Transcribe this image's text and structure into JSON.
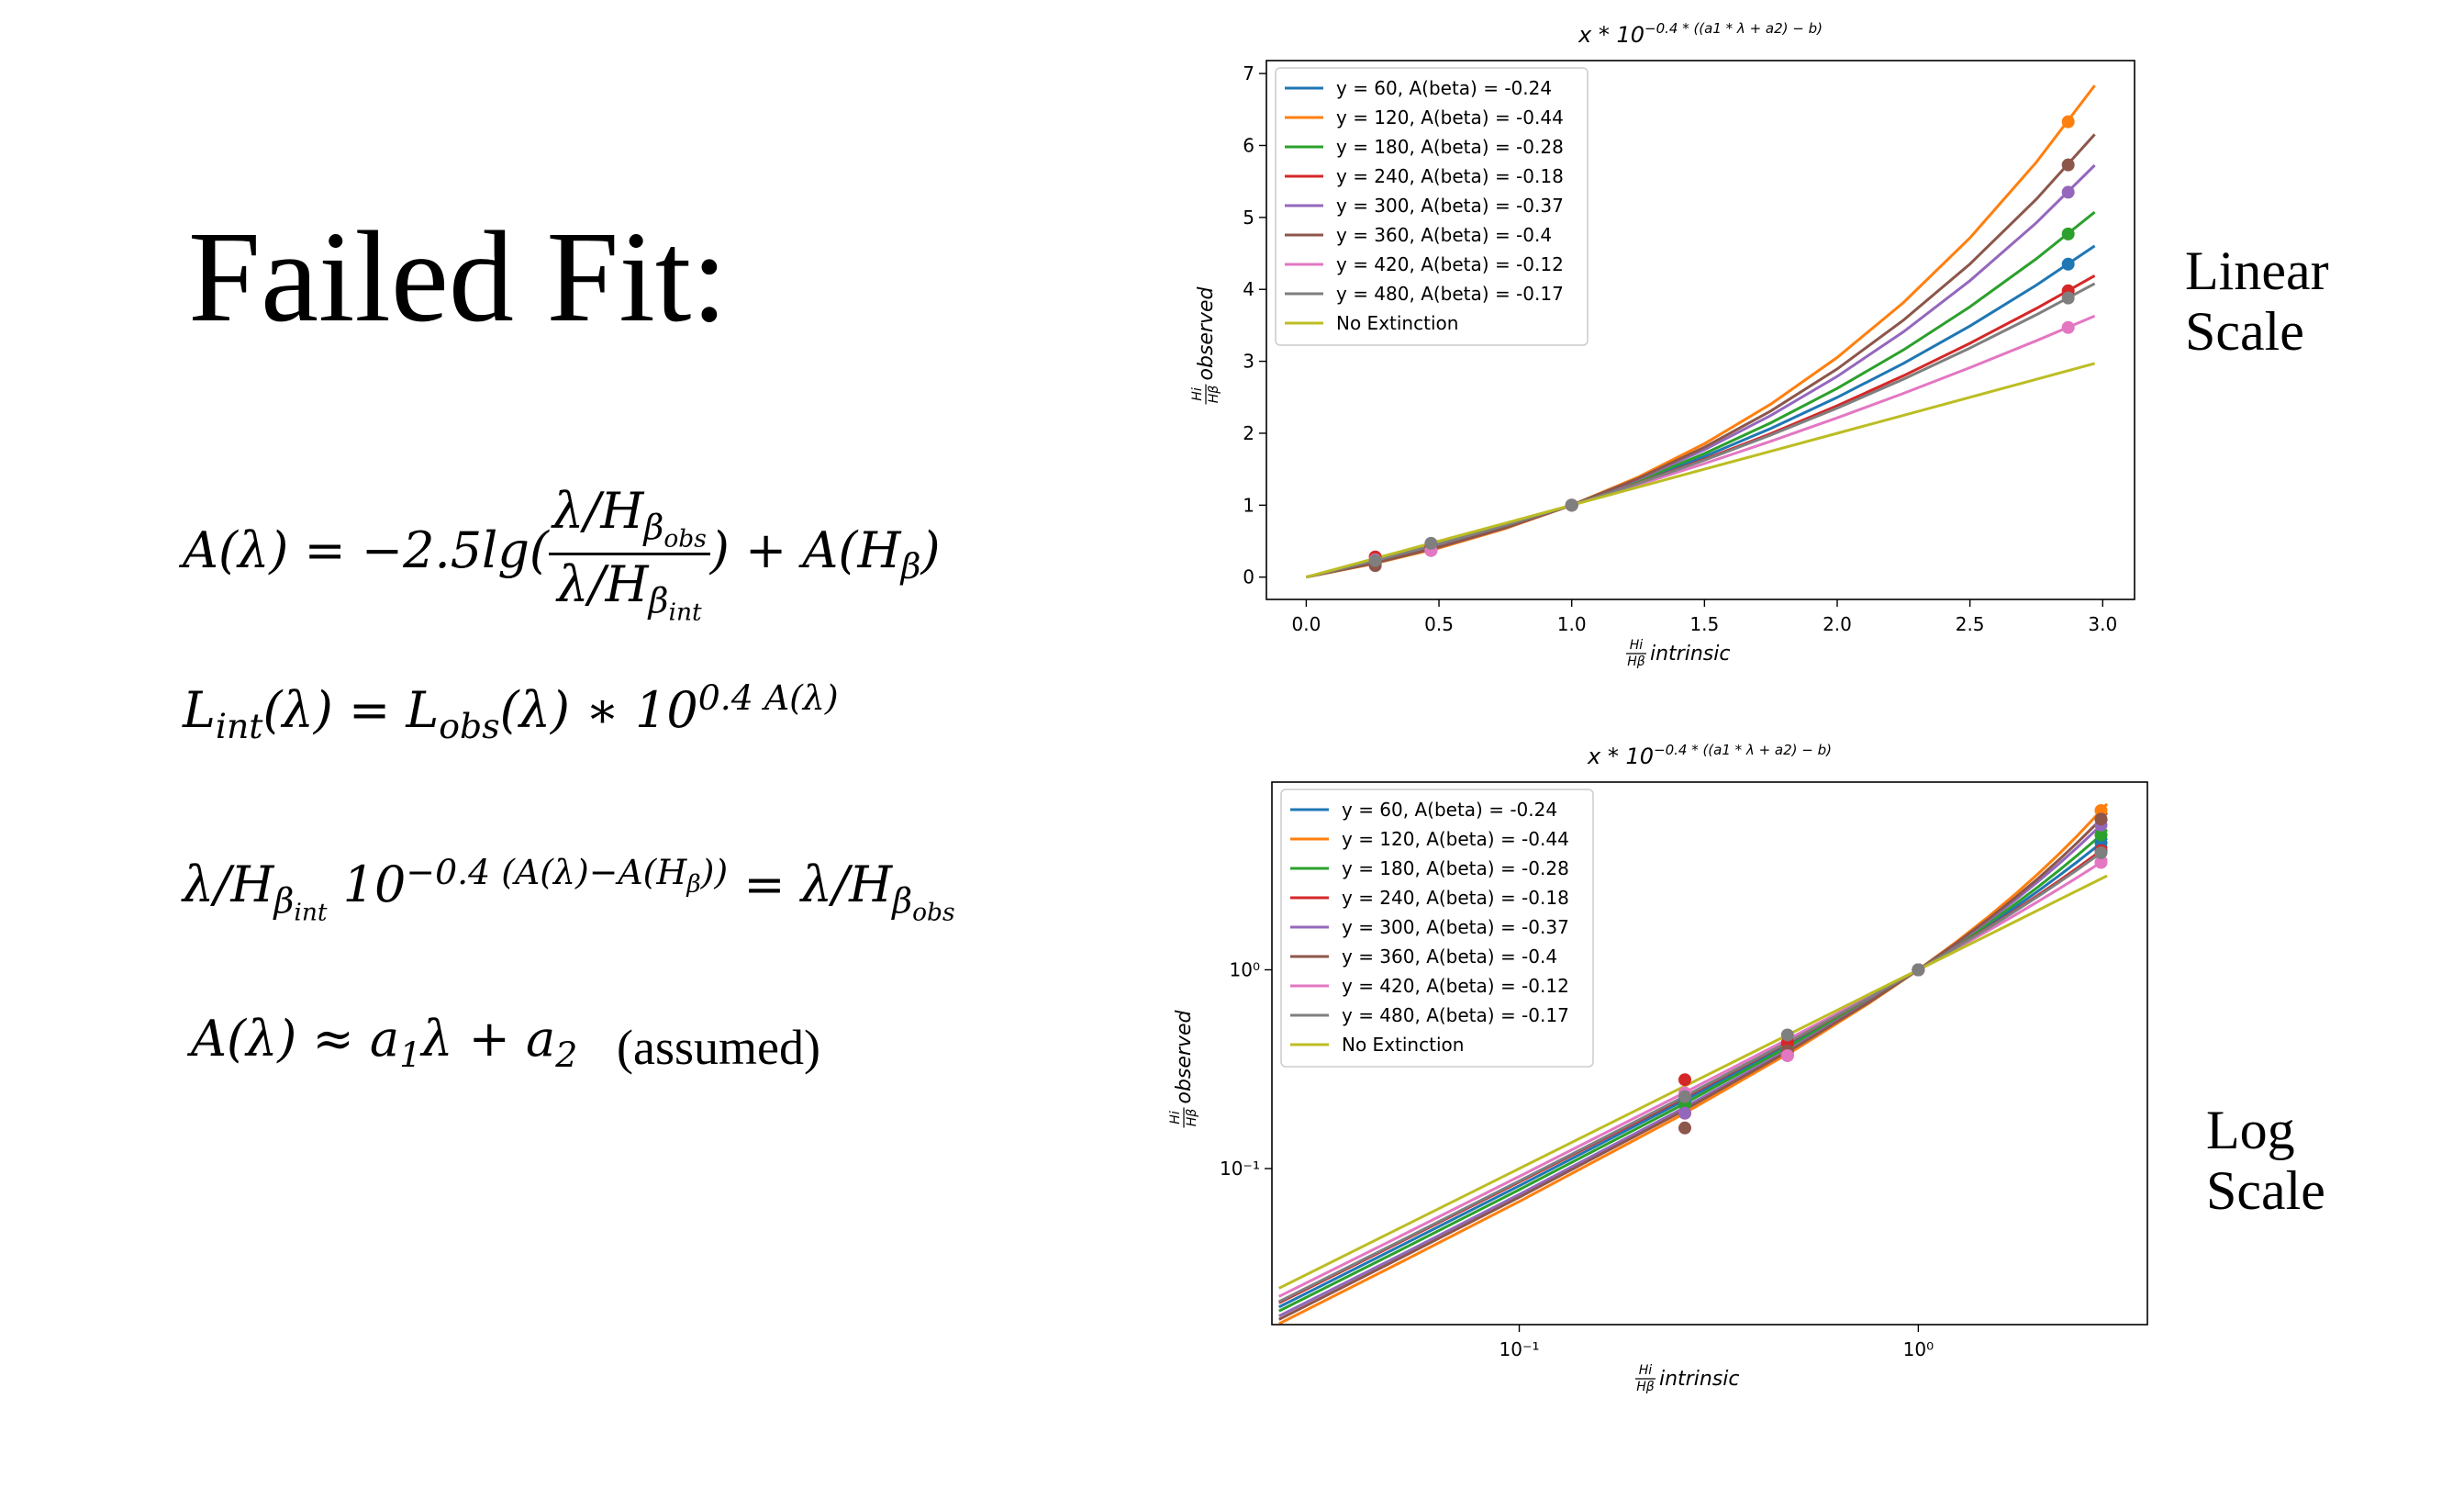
{
  "slide": {
    "title": "Failed Fit:",
    "equations": [
      [
        "A(λ) = −2.5lg(",
        "λ/H",
        "β",
        "obs",
        "λ/H",
        "β",
        "int",
        ") + A(H",
        "β",
        ")"
      ],
      [
        "L",
        "int",
        "(λ) = L",
        "obs",
        "(λ) ∗ 10",
        "0.4 A(λ)"
      ],
      [
        "λ/H",
        "β",
        "int",
        " 10",
        "−0.4 (A(λ)−A(H",
        "β",
        "))",
        " = λ/H",
        "β",
        "obs"
      ],
      [
        "A(λ) ≈ a",
        "1",
        "λ + a",
        "2"
      ]
    ],
    "note": "(assumed)",
    "labels": [
      "Linear Scale",
      "Log Scale"
    ]
  },
  "chart_data": [
    {
      "type": "line",
      "title": "x * 10",
      "title_exponent": "−0.4 * ((a1 * λ + a2) − b)",
      "xlabel": {
        "numerator": "Hi",
        "denominator": "Hβ",
        "text": "intrinsic"
      },
      "ylabel": {
        "numerator": "Hi",
        "denominator": "Hβ",
        "text": "observed"
      },
      "xlim": [
        -0.15,
        3.12
      ],
      "ylim": [
        -0.31,
        7.18
      ],
      "xticks": [
        {
          "value": 0,
          "label": "0.0"
        },
        0.5,
        {
          "value": 1,
          "label": "1.0"
        },
        1.5,
        {
          "value": 2,
          "label": "2.0"
        },
        2.5,
        {
          "value": 3,
          "label": "3.0"
        }
      ],
      "yticks": [
        0,
        1,
        2,
        3,
        4,
        5,
        6,
        7
      ],
      "grid": false,
      "legend": "upper left",
      "x": [
        0,
        0.25,
        0.5,
        0.75,
        1,
        1.25,
        1.5,
        1.75,
        2,
        2.25,
        2.5,
        2.75,
        2.97
      ],
      "marker_x": [
        0.26,
        0.47,
        1,
        2.87
      ],
      "series": [
        {
          "name": "y = 60, A(beta) = -0.24",
          "color": "#1f77b4",
          "values": [
            0,
            0.212,
            0.447,
            0.709,
            1,
            1.321,
            1.676,
            2.067,
            2.498,
            2.972,
            3.49,
            4.059,
            4.604
          ],
          "marker_values": [
            0.22,
            0.42,
            1,
            4.35
          ]
        },
        {
          "name": "y = 120, A(beta) = -0.44",
          "color": "#ff7f0e",
          "values": [
            0,
            0.182,
            0.405,
            0.675,
            1,
            1.389,
            1.854,
            2.405,
            3.054,
            3.818,
            4.715,
            5.767,
            6.834
          ],
          "marker_values": [
            0.19,
            0.38,
            1,
            6.33
          ]
        },
        {
          "name": "y = 180, A(beta) = -0.28",
          "color": "#2ca02c",
          "values": [
            0,
            0.204,
            0.437,
            0.7,
            1,
            1.338,
            1.718,
            2.145,
            2.624,
            3.159,
            3.758,
            4.425,
            5.073
          ],
          "marker_values": [
            0.21,
            0.41,
            1,
            4.77
          ]
        },
        {
          "name": "y = 240, A(beta) = -0.18",
          "color": "#d62728",
          "values": [
            0,
            0.219,
            0.458,
            0.718,
            1,
            1.306,
            1.637,
            1.995,
            2.382,
            2.799,
            3.25,
            3.735,
            4.191
          ],
          "marker_values": [
            0.28,
            0.43,
            1,
            3.98
          ]
        },
        {
          "name": "y = 300, A(beta) = -0.37",
          "color": "#9467bd",
          "values": [
            0,
            0.195,
            0.423,
            0.69,
            1,
            1.359,
            1.771,
            2.247,
            2.79,
            3.411,
            4.12,
            4.925,
            5.726
          ],
          "marker_values": [
            0.19,
            0.37,
            1,
            5.35
          ]
        },
        {
          "name": "y = 360, A(beta) = -0.4",
          "color": "#8c564b",
          "values": [
            0,
            0.189,
            0.416,
            0.684,
            1,
            1.371,
            1.805,
            2.31,
            2.894,
            3.573,
            4.353,
            5.253,
            6.154
          ],
          "marker_values": [
            0.16,
            0.39,
            1,
            5.73
          ]
        },
        {
          "name": "y = 420, A(beta) = -0.12",
          "color": "#e377c2",
          "values": [
            0,
            0.232,
            0.476,
            0.731,
            1,
            1.282,
            1.578,
            1.889,
            2.214,
            2.554,
            2.912,
            3.286,
            3.629
          ],
          "marker_values": [
            0.24,
            0.37,
            1,
            3.47
          ]
        },
        {
          "name": "y = 480, A(beta) = -0.17",
          "color": "#7f7f7f",
          "values": [
            0,
            0.222,
            0.461,
            0.72,
            1,
            1.301,
            1.626,
            1.975,
            2.349,
            2.752,
            3.184,
            3.647,
            4.081
          ],
          "marker_values": [
            0.23,
            0.47,
            1,
            3.88
          ]
        },
        {
          "name": "No Extinction",
          "color": "#bcbd22",
          "values": [
            0,
            0.25,
            0.5,
            0.75,
            1,
            1.25,
            1.5,
            1.75,
            2,
            2.25,
            2.5,
            2.75,
            2.97
          ]
        }
      ]
    },
    {
      "type": "line",
      "title": "x * 10",
      "title_exponent": "−0.4 * ((a1 * λ + a2) − b)",
      "xlabel": {
        "numerator": "Hi",
        "denominator": "Hβ",
        "text": "intrinsic"
      },
      "ylabel": {
        "numerator": "Hi",
        "denominator": "Hβ",
        "text": "observed"
      },
      "xscale": "log",
      "yscale": "log",
      "xlim": [
        0.024,
        3.75
      ],
      "ylim": [
        0.0164,
        8.8
      ],
      "xticks": [
        {
          "value": 0.1,
          "label": "10⁻¹"
        },
        {
          "value": 1,
          "label": "10⁰"
        }
      ],
      "yticks": [
        {
          "value": 0.1,
          "label": "10⁻¹"
        },
        {
          "value": 1,
          "label": "10⁰"
        }
      ],
      "grid": false,
      "legend": "upper left",
      "x": [
        0.025,
        0.05,
        0.1,
        0.25,
        0.5,
        0.75,
        1,
        1.25,
        1.5,
        1.75,
        2,
        2.25,
        2.5,
        2.75,
        2.97
      ],
      "marker_x": [
        0.26,
        0.47,
        1,
        2.87
      ],
      "series": [
        {
          "name": "y = 60, A(beta) = -0.24",
          "color": "#1f77b4",
          "values": [
            0.0201,
            0.0405,
            0.0819,
            0.212,
            0.447,
            0.709,
            1,
            1.321,
            1.676,
            2.067,
            2.498,
            2.972,
            3.49,
            4.059,
            4.604
          ],
          "marker_values": [
            0.22,
            0.42,
            1,
            4.35
          ]
        },
        {
          "name": "y = 120, A(beta) = -0.44",
          "color": "#ff7f0e",
          "values": [
            0.01655,
            0.03345,
            0.0683,
            0.182,
            0.405,
            0.675,
            1,
            1.389,
            1.854,
            2.405,
            3.054,
            3.818,
            4.715,
            5.767,
            6.834
          ],
          "marker_values": [
            0.19,
            0.38,
            1,
            6.33
          ]
        },
        {
          "name": "y = 180, A(beta) = -0.28",
          "color": "#2ca02c",
          "values": [
            0.0192,
            0.0386,
            0.0783,
            0.204,
            0.437,
            0.7,
            1,
            1.338,
            1.718,
            2.145,
            2.624,
            3.159,
            3.758,
            4.425,
            5.073
          ],
          "marker_values": [
            0.21,
            0.41,
            1,
            4.77
          ]
        },
        {
          "name": "y = 240, A(beta) = -0.18",
          "color": "#d62728",
          "values": [
            0.0211,
            0.0424,
            0.0855,
            0.219,
            0.458,
            0.718,
            1,
            1.306,
            1.637,
            1.995,
            2.382,
            2.799,
            3.25,
            3.735,
            4.191
          ],
          "marker_values": [
            0.28,
            0.43,
            1,
            3.98
          ]
        },
        {
          "name": "y = 300, A(beta) = -0.37",
          "color": "#9467bd",
          "values": [
            0.0181,
            0.0364,
            0.0741,
            0.195,
            0.423,
            0.69,
            1,
            1.359,
            1.771,
            2.247,
            2.79,
            3.411,
            4.12,
            4.925,
            5.726
          ],
          "marker_values": [
            0.19,
            0.37,
            1,
            5.35
          ]
        },
        {
          "name": "y = 360, A(beta) = -0.4",
          "color": "#8c564b",
          "values": [
            0.0174,
            0.0352,
            0.0717,
            0.189,
            0.416,
            0.684,
            1,
            1.371,
            1.805,
            2.31,
            2.894,
            3.573,
            4.353,
            5.253,
            6.154
          ],
          "marker_values": [
            0.16,
            0.39,
            1,
            5.73
          ]
        },
        {
          "name": "y = 420, A(beta) = -0.12",
          "color": "#e377c2",
          "values": [
            0.0227,
            0.0454,
            0.0913,
            0.232,
            0.476,
            0.731,
            1,
            1.282,
            1.578,
            1.889,
            2.214,
            2.554,
            2.912,
            3.286,
            3.629
          ],
          "marker_values": [
            0.24,
            0.37,
            1,
            3.47
          ]
        },
        {
          "name": "y = 480, A(beta) = -0.17",
          "color": "#7f7f7f",
          "values": [
            0.0214,
            0.0429,
            0.0865,
            0.222,
            0.461,
            0.72,
            1,
            1.301,
            1.626,
            1.975,
            2.349,
            2.752,
            3.184,
            3.647,
            4.081
          ],
          "marker_values": [
            0.23,
            0.47,
            1,
            3.88
          ]
        },
        {
          "name": "No Extinction",
          "color": "#bcbd22",
          "values": [
            0.025,
            0.05,
            0.1,
            0.25,
            0.5,
            0.75,
            1,
            1.25,
            1.5,
            1.75,
            2,
            2.25,
            2.5,
            2.75,
            2.97
          ]
        }
      ]
    }
  ]
}
